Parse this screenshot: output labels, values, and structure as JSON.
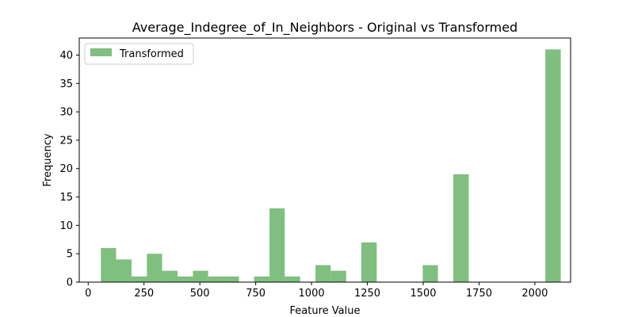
{
  "chart_data": {
    "type": "bar",
    "title": "Average_Indegree_of_In_Neighbors - Original vs Transformed",
    "xlabel": "Feature Value",
    "ylabel": "Frequency",
    "xlim": [
      -40,
      2160
    ],
    "ylim": [
      0,
      43
    ],
    "xticks": [
      0,
      250,
      500,
      750,
      1000,
      1250,
      1500,
      1750,
      2000
    ],
    "yticks": [
      0,
      5,
      10,
      15,
      20,
      25,
      30,
      35,
      40
    ],
    "grid": false,
    "legend_position": "top-left",
    "bar_color": "#7fbf7f",
    "series": [
      {
        "name": "Transformed",
        "bins": [
          {
            "x0": 57,
            "x1": 125,
            "value": 6
          },
          {
            "x0": 125,
            "x1": 194,
            "value": 4
          },
          {
            "x0": 194,
            "x1": 263,
            "value": 1
          },
          {
            "x0": 263,
            "x1": 331,
            "value": 5
          },
          {
            "x0": 331,
            "x1": 400,
            "value": 2
          },
          {
            "x0": 400,
            "x1": 469,
            "value": 1
          },
          {
            "x0": 469,
            "x1": 537,
            "value": 2
          },
          {
            "x0": 537,
            "x1": 606,
            "value": 1
          },
          {
            "x0": 606,
            "x1": 675,
            "value": 1
          },
          {
            "x0": 743,
            "x1": 812,
            "value": 1
          },
          {
            "x0": 812,
            "x1": 880,
            "value": 13
          },
          {
            "x0": 880,
            "x1": 949,
            "value": 1
          },
          {
            "x0": 1018,
            "x1": 1086,
            "value": 3
          },
          {
            "x0": 1086,
            "x1": 1155,
            "value": 2
          },
          {
            "x0": 1223,
            "x1": 1292,
            "value": 7
          },
          {
            "x0": 1498,
            "x1": 1566,
            "value": 3
          },
          {
            "x0": 1635,
            "x1": 1704,
            "value": 19
          },
          {
            "x0": 2047,
            "x1": 2116,
            "value": 41
          }
        ]
      }
    ]
  }
}
